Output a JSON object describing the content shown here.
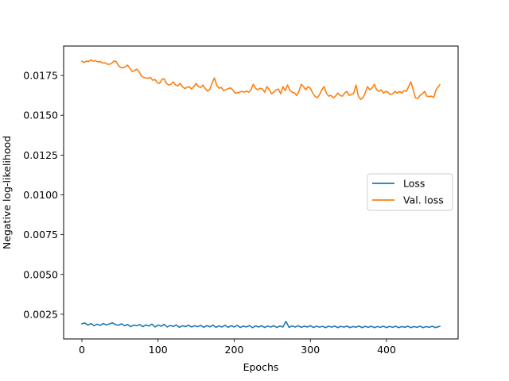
{
  "chart_data": {
    "type": "line",
    "title": "",
    "xlabel": "Epochs",
    "ylabel": "Negative log-likelihood",
    "xlim": [
      -24,
      494
    ],
    "ylim": [
      0.00095,
      0.01935
    ],
    "xticks": [
      {
        "value": 0,
        "label": "0"
      },
      {
        "value": 100,
        "label": "100"
      },
      {
        "value": 200,
        "label": "200"
      },
      {
        "value": 300,
        "label": "300"
      },
      {
        "value": 400,
        "label": "400"
      }
    ],
    "yticks": [
      {
        "value": 0.0025,
        "label": "0.0025"
      },
      {
        "value": 0.005,
        "label": "0.0050"
      },
      {
        "value": 0.0075,
        "label": "0.0075"
      },
      {
        "value": 0.01,
        "label": "0.0100"
      },
      {
        "value": 0.0125,
        "label": "0.0125"
      },
      {
        "value": 0.015,
        "label": "0.0150"
      },
      {
        "value": 0.0175,
        "label": "0.0175"
      }
    ],
    "grid": false,
    "legend_position": "center-right",
    "series": [
      {
        "name": "Loss",
        "color": "#1f77b4",
        "points": [
          [
            0,
            0.0019
          ],
          [
            4,
            0.00195
          ],
          [
            8,
            0.00182
          ],
          [
            12,
            0.00192
          ],
          [
            16,
            0.00178
          ],
          [
            20,
            0.00188
          ],
          [
            24,
            0.0018
          ],
          [
            28,
            0.00192
          ],
          [
            32,
            0.00183
          ],
          [
            36,
            0.00189
          ],
          [
            40,
            0.00196
          ],
          [
            44,
            0.00185
          ],
          [
            48,
            0.00181
          ],
          [
            52,
            0.0019
          ],
          [
            56,
            0.00178
          ],
          [
            60,
            0.00186
          ],
          [
            64,
            0.00172
          ],
          [
            68,
            0.00182
          ],
          [
            72,
            0.00178
          ],
          [
            76,
            0.00185
          ],
          [
            80,
            0.00172
          ],
          [
            84,
            0.00183
          ],
          [
            88,
            0.00176
          ],
          [
            92,
            0.00188
          ],
          [
            96,
            0.0017
          ],
          [
            100,
            0.00182
          ],
          [
            104,
            0.00175
          ],
          [
            108,
            0.00187
          ],
          [
            112,
            0.0017
          ],
          [
            116,
            0.0018
          ],
          [
            120,
            0.00173
          ],
          [
            124,
            0.00183
          ],
          [
            128,
            0.00168
          ],
          [
            132,
            0.00178
          ],
          [
            136,
            0.00172
          ],
          [
            140,
            0.00181
          ],
          [
            144,
            0.0017
          ],
          [
            148,
            0.00178
          ],
          [
            152,
            0.00172
          ],
          [
            156,
            0.0018
          ],
          [
            160,
            0.00168
          ],
          [
            164,
            0.00179
          ],
          [
            168,
            0.00171
          ],
          [
            172,
            0.00182
          ],
          [
            176,
            0.00168
          ],
          [
            180,
            0.00177
          ],
          [
            184,
            0.0017
          ],
          [
            188,
            0.00181
          ],
          [
            192,
            0.00168
          ],
          [
            196,
            0.00178
          ],
          [
            200,
            0.0017
          ],
          [
            204,
            0.0018
          ],
          [
            208,
            0.00167
          ],
          [
            212,
            0.00176
          ],
          [
            216,
            0.0017
          ],
          [
            220,
            0.00179
          ],
          [
            224,
            0.00166
          ],
          [
            228,
            0.00177
          ],
          [
            232,
            0.0017
          ],
          [
            236,
            0.00178
          ],
          [
            240,
            0.00167
          ],
          [
            244,
            0.00176
          ],
          [
            248,
            0.0017
          ],
          [
            252,
            0.00178
          ],
          [
            256,
            0.00167
          ],
          [
            260,
            0.00176
          ],
          [
            264,
            0.0017
          ],
          [
            268,
            0.00205
          ],
          [
            272,
            0.00168
          ],
          [
            276,
            0.00177
          ],
          [
            280,
            0.0017
          ],
          [
            284,
            0.00178
          ],
          [
            288,
            0.00168
          ],
          [
            292,
            0.00175
          ],
          [
            296,
            0.0017
          ],
          [
            300,
            0.00178
          ],
          [
            304,
            0.00167
          ],
          [
            308,
            0.00175
          ],
          [
            312,
            0.00169
          ],
          [
            316,
            0.00174
          ],
          [
            320,
            0.00166
          ],
          [
            324,
            0.00175
          ],
          [
            328,
            0.00169
          ],
          [
            332,
            0.00176
          ],
          [
            336,
            0.00166
          ],
          [
            340,
            0.00174
          ],
          [
            344,
            0.00169
          ],
          [
            348,
            0.00176
          ],
          [
            352,
            0.00166
          ],
          [
            356,
            0.00173
          ],
          [
            360,
            0.00169
          ],
          [
            364,
            0.00176
          ],
          [
            368,
            0.00166
          ],
          [
            372,
            0.00174
          ],
          [
            376,
            0.00168
          ],
          [
            380,
            0.00175
          ],
          [
            384,
            0.00166
          ],
          [
            388,
            0.00173
          ],
          [
            392,
            0.00168
          ],
          [
            396,
            0.00175
          ],
          [
            400,
            0.00166
          ],
          [
            404,
            0.00174
          ],
          [
            408,
            0.00168
          ],
          [
            412,
            0.00175
          ],
          [
            416,
            0.00166
          ],
          [
            420,
            0.00173
          ],
          [
            424,
            0.00168
          ],
          [
            428,
            0.00175
          ],
          [
            432,
            0.00166
          ],
          [
            436,
            0.00173
          ],
          [
            440,
            0.00168
          ],
          [
            444,
            0.00175
          ],
          [
            448,
            0.00166
          ],
          [
            452,
            0.00173
          ],
          [
            456,
            0.00168
          ],
          [
            460,
            0.00175
          ],
          [
            464,
            0.00166
          ],
          [
            468,
            0.00172
          ],
          [
            470,
            0.00174
          ]
        ]
      },
      {
        "name": "Val. loss",
        "color": "#ff7f0e",
        "points": [
          [
            0,
            0.0184
          ],
          [
            3,
            0.01832
          ],
          [
            6,
            0.0184
          ],
          [
            9,
            0.01838
          ],
          [
            12,
            0.01848
          ],
          [
            15,
            0.0184
          ],
          [
            18,
            0.01843
          ],
          [
            21,
            0.01835
          ],
          [
            24,
            0.01838
          ],
          [
            27,
            0.01828
          ],
          [
            30,
            0.0183
          ],
          [
            33,
            0.01822
          ],
          [
            36,
            0.0182
          ],
          [
            39,
            0.01826
          ],
          [
            42,
            0.0184
          ],
          [
            45,
            0.01838
          ],
          [
            48,
            0.01812
          ],
          [
            51,
            0.018
          ],
          [
            54,
            0.01798
          ],
          [
            57,
            0.01805
          ],
          [
            60,
            0.01815
          ],
          [
            63,
            0.01795
          ],
          [
            66,
            0.01775
          ],
          [
            69,
            0.0178
          ],
          [
            72,
            0.0179
          ],
          [
            75,
            0.01775
          ],
          [
            78,
            0.01748
          ],
          [
            81,
            0.01738
          ],
          [
            84,
            0.01735
          ],
          [
            87,
            0.01732
          ],
          [
            90,
            0.01738
          ],
          [
            93,
            0.0172
          ],
          [
            96,
            0.01725
          ],
          [
            99,
            0.01705
          ],
          [
            102,
            0.017
          ],
          [
            105,
            0.01725
          ],
          [
            108,
            0.0173
          ],
          [
            111,
            0.017
          ],
          [
            114,
            0.0169
          ],
          [
            117,
            0.01695
          ],
          [
            120,
            0.0171
          ],
          [
            123,
            0.0169
          ],
          [
            126,
            0.01685
          ],
          [
            129,
            0.017
          ],
          [
            132,
            0.0168
          ],
          [
            135,
            0.01668
          ],
          [
            138,
            0.01675
          ],
          [
            141,
            0.0168
          ],
          [
            144,
            0.01665
          ],
          [
            147,
            0.0168
          ],
          [
            150,
            0.017
          ],
          [
            153,
            0.0168
          ],
          [
            156,
            0.01675
          ],
          [
            159,
            0.0169
          ],
          [
            162,
            0.01668
          ],
          [
            165,
            0.01652
          ],
          [
            168,
            0.01665
          ],
          [
            171,
            0.01702
          ],
          [
            174,
            0.01735
          ],
          [
            177,
            0.0169
          ],
          [
            180,
            0.0167
          ],
          [
            183,
            0.01675
          ],
          [
            186,
            0.01655
          ],
          [
            189,
            0.0166
          ],
          [
            192,
            0.01668
          ],
          [
            195,
            0.01672
          ],
          [
            198,
            0.0166
          ],
          [
            201,
            0.0164
          ],
          [
            204,
            0.0164
          ],
          [
            207,
            0.01645
          ],
          [
            210,
            0.0165
          ],
          [
            213,
            0.01645
          ],
          [
            216,
            0.01652
          ],
          [
            219,
            0.01645
          ],
          [
            222,
            0.0166
          ],
          [
            225,
            0.01695
          ],
          [
            228,
            0.0167
          ],
          [
            231,
            0.0166
          ],
          [
            234,
            0.0167
          ],
          [
            237,
            0.01665
          ],
          [
            240,
            0.01645
          ],
          [
            243,
            0.0168
          ],
          [
            246,
            0.0166
          ],
          [
            249,
            0.01635
          ],
          [
            252,
            0.01645
          ],
          [
            255,
            0.0166
          ],
          [
            258,
            0.01665
          ],
          [
            261,
            0.01635
          ],
          [
            264,
            0.0168
          ],
          [
            267,
            0.01655
          ],
          [
            270,
            0.0169
          ],
          [
            273,
            0.01658
          ],
          [
            276,
            0.01645
          ],
          [
            279,
            0.0164
          ],
          [
            282,
            0.01625
          ],
          [
            285,
            0.0165
          ],
          [
            288,
            0.01695
          ],
          [
            291,
            0.0168
          ],
          [
            294,
            0.0166
          ],
          [
            297,
            0.0168
          ],
          [
            300,
            0.0167
          ],
          [
            303,
            0.0164
          ],
          [
            306,
            0.0162
          ],
          [
            309,
            0.0161
          ],
          [
            312,
            0.0163
          ],
          [
            315,
            0.0166
          ],
          [
            318,
            0.0168
          ],
          [
            321,
            0.0164
          ],
          [
            324,
            0.0162
          ],
          [
            327,
            0.01625
          ],
          [
            330,
            0.0161
          ],
          [
            333,
            0.0162
          ],
          [
            336,
            0.0164
          ],
          [
            339,
            0.01625
          ],
          [
            342,
            0.0162
          ],
          [
            345,
            0.0164
          ],
          [
            348,
            0.0165
          ],
          [
            351,
            0.01625
          ],
          [
            354,
            0.0163
          ],
          [
            357,
            0.0164
          ],
          [
            360,
            0.0169
          ],
          [
            363,
            0.0162
          ],
          [
            366,
            0.016
          ],
          [
            369,
            0.0161
          ],
          [
            372,
            0.0164
          ],
          [
            375,
            0.0168
          ],
          [
            378,
            0.0166
          ],
          [
            381,
            0.0167
          ],
          [
            384,
            0.01695
          ],
          [
            387,
            0.0166
          ],
          [
            390,
            0.0165
          ],
          [
            393,
            0.0166
          ],
          [
            396,
            0.0164
          ],
          [
            399,
            0.0165
          ],
          [
            402,
            0.01645
          ],
          [
            405,
            0.0163
          ],
          [
            408,
            0.01635
          ],
          [
            411,
            0.0165
          ],
          [
            414,
            0.0164
          ],
          [
            417,
            0.0165
          ],
          [
            420,
            0.0164
          ],
          [
            423,
            0.01655
          ],
          [
            426,
            0.0165
          ],
          [
            429,
            0.0168
          ],
          [
            432,
            0.0171
          ],
          [
            435,
            0.0166
          ],
          [
            438,
            0.0161
          ],
          [
            441,
            0.01605
          ],
          [
            444,
            0.01625
          ],
          [
            447,
            0.01635
          ],
          [
            450,
            0.0165
          ],
          [
            453,
            0.0162
          ],
          [
            456,
            0.01618
          ],
          [
            459,
            0.0162
          ],
          [
            462,
            0.01612
          ],
          [
            465,
            0.0166
          ],
          [
            468,
            0.0168
          ],
          [
            470,
            0.01692
          ]
        ]
      }
    ]
  }
}
